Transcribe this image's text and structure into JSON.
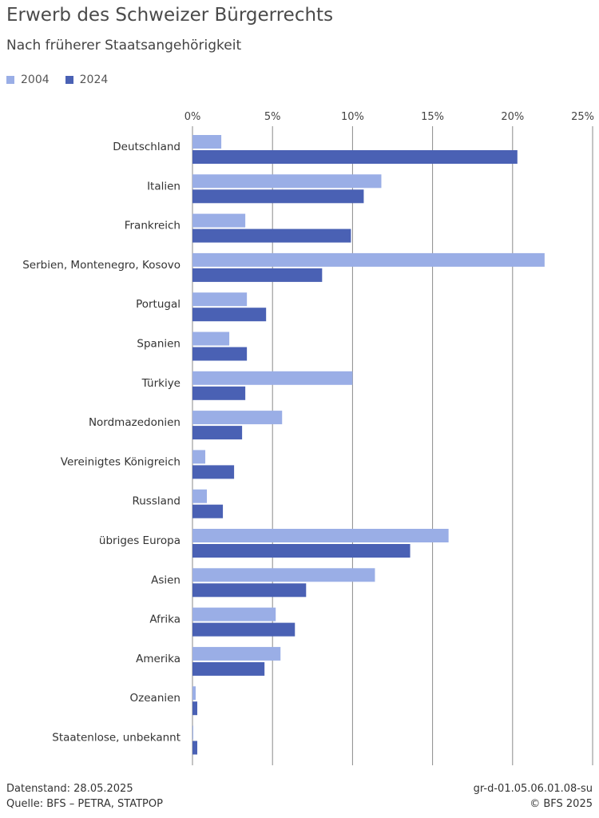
{
  "header": {
    "title": "Erwerb des Schweizer Bürgerrechts",
    "subtitle": "Nach früherer Staatsangehörigkeit"
  },
  "colors": {
    "series_2004": "#9aaee6",
    "series_2024": "#4a61b4",
    "grid": "#8a8a8a",
    "text": "#333333"
  },
  "chart_data": {
    "type": "bar",
    "orientation": "horizontal",
    "title": "Erwerb des Schweizer Bürgerrechts",
    "subtitle": "Nach früherer Staatsangehörigkeit",
    "categories": [
      "Deutschland",
      "Italien",
      "Frankreich",
      "Serbien, Montenegro, Kosovo",
      "Portugal",
      "Spanien",
      "Türkiye",
      "Nordmazedonien",
      "Vereinigtes Königreich",
      "Russland",
      "übriges Europa",
      "Asien",
      "Afrika",
      "Amerika",
      "Ozeanien",
      "Staatenlose, unbekannt"
    ],
    "series": [
      {
        "name": "2004",
        "values": [
          1.8,
          11.8,
          3.3,
          22.0,
          3.4,
          2.3,
          10.0,
          5.6,
          0.8,
          0.9,
          16.0,
          11.4,
          5.2,
          5.5,
          0.2,
          0.05
        ]
      },
      {
        "name": "2024",
        "values": [
          20.3,
          10.7,
          9.9,
          8.1,
          4.6,
          3.4,
          3.3,
          3.1,
          2.6,
          1.9,
          13.6,
          7.1,
          6.4,
          4.5,
          0.3,
          0.3
        ]
      }
    ],
    "xlim": [
      0,
      25
    ],
    "xticks": [
      "0%",
      "5%",
      "10%",
      "15%",
      "20%",
      "25%"
    ],
    "legend_position": "top-left",
    "grid": true
  },
  "footer": {
    "datenstand": "Datenstand: 28.05.2025",
    "quelle": "Quelle: BFS – PETRA, STATPOP",
    "code": "gr-d-01.05.06.01.08-su",
    "copyright": "© BFS 2025"
  }
}
